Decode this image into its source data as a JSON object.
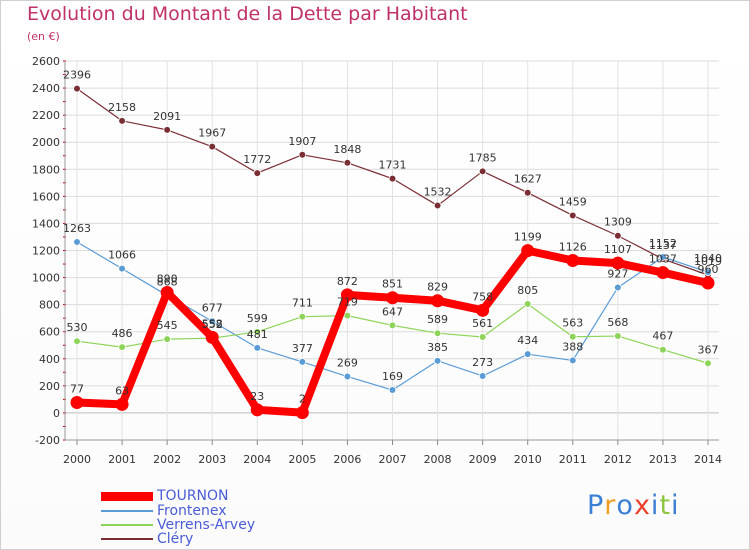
{
  "colors": {
    "title": "#c0306a",
    "legend_text": "#4a5cd6",
    "grid": "#d8d8d8",
    "axis_tick": "#cc0000"
  },
  "chart_data": {
    "type": "line",
    "title": "Evolution du Montant de la Dette par Habitant",
    "subtitle": "(en €)",
    "x": [
      "2000",
      "2001",
      "2002",
      "2003",
      "2004",
      "2005",
      "2006",
      "2007",
      "2008",
      "2009",
      "2010",
      "2011",
      "2012",
      "2013",
      "2014"
    ],
    "ylim": [
      -200,
      2600
    ],
    "yticks": [
      -200,
      0,
      200,
      400,
      600,
      800,
      1000,
      1200,
      1400,
      1600,
      1800,
      2000,
      2200,
      2400,
      2600
    ],
    "series": [
      {
        "name": "TOURNON",
        "color": "#ff0000",
        "values": [
          77,
          63,
          890,
          558,
          23,
          2,
          872,
          851,
          829,
          758,
          1199,
          1126,
          1107,
          1037,
          960
        ],
        "labels": [
          "77",
          "63",
          "890",
          "558",
          "23",
          "2",
          "872",
          "851",
          "829",
          "758",
          "1199",
          "1126",
          "1107",
          "1037",
          "960"
        ]
      },
      {
        "name": "Frontenex",
        "color": "#5b9bd5",
        "values": [
          1263,
          1066,
          868,
          677,
          481,
          377,
          269,
          169,
          385,
          273,
          434,
          388,
          927,
          1152,
          1040
        ],
        "labels": [
          "1263",
          "1066",
          "868",
          "677",
          "481",
          "377",
          "269",
          "169",
          "385",
          "273",
          "434",
          "388",
          "927",
          "1152",
          "1040"
        ]
      },
      {
        "name": "Verrens-Arvey",
        "color": "#8ed45a",
        "values": [
          530,
          486,
          545,
          552,
          599,
          711,
          719,
          647,
          589,
          561,
          805,
          563,
          568,
          467,
          367
        ],
        "labels": [
          "530",
          "486",
          "545",
          "552",
          "599",
          "711",
          "719",
          "647",
          "589",
          "561",
          "805",
          "563",
          "568",
          "467",
          "367"
        ]
      },
      {
        "name": "Cléry",
        "color": "#7a2e34",
        "values": [
          2396,
          2158,
          2091,
          1967,
          1772,
          1907,
          1848,
          1731,
          1532,
          1785,
          1627,
          1459,
          1309,
          1137,
          1019
        ],
        "labels": [
          "2396",
          "2158",
          "2091",
          "1967",
          "1772",
          "1907",
          "1848",
          "1731",
          "1532",
          "1785",
          "1627",
          "1459",
          "1309",
          "1137",
          "1019"
        ]
      }
    ]
  },
  "legend": {
    "items": [
      "TOURNON",
      "Frontenex",
      "Verrens-Arvey",
      "Cléry"
    ]
  },
  "logo": {
    "letters": [
      "P",
      "r",
      "o",
      "x",
      "i",
      "t",
      "i"
    ],
    "colors": [
      "#3a7fd4",
      "#f0a020",
      "#3a7fd4",
      "#e8402a",
      "#3a7fd4",
      "#8ec63f",
      "#3a7fd4"
    ]
  }
}
